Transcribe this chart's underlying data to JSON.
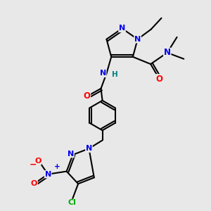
{
  "background_color": "#e8e8e8",
  "atom_colors": {
    "N": "#0000ee",
    "O": "#ff0000",
    "Cl": "#00aa00",
    "C": "#000000",
    "H": "#008080"
  },
  "bond_color": "#000000",
  "figsize": [
    3.0,
    3.0
  ],
  "dpi": 100,
  "xlim": [
    0,
    10
  ],
  "ylim": [
    0,
    10
  ]
}
